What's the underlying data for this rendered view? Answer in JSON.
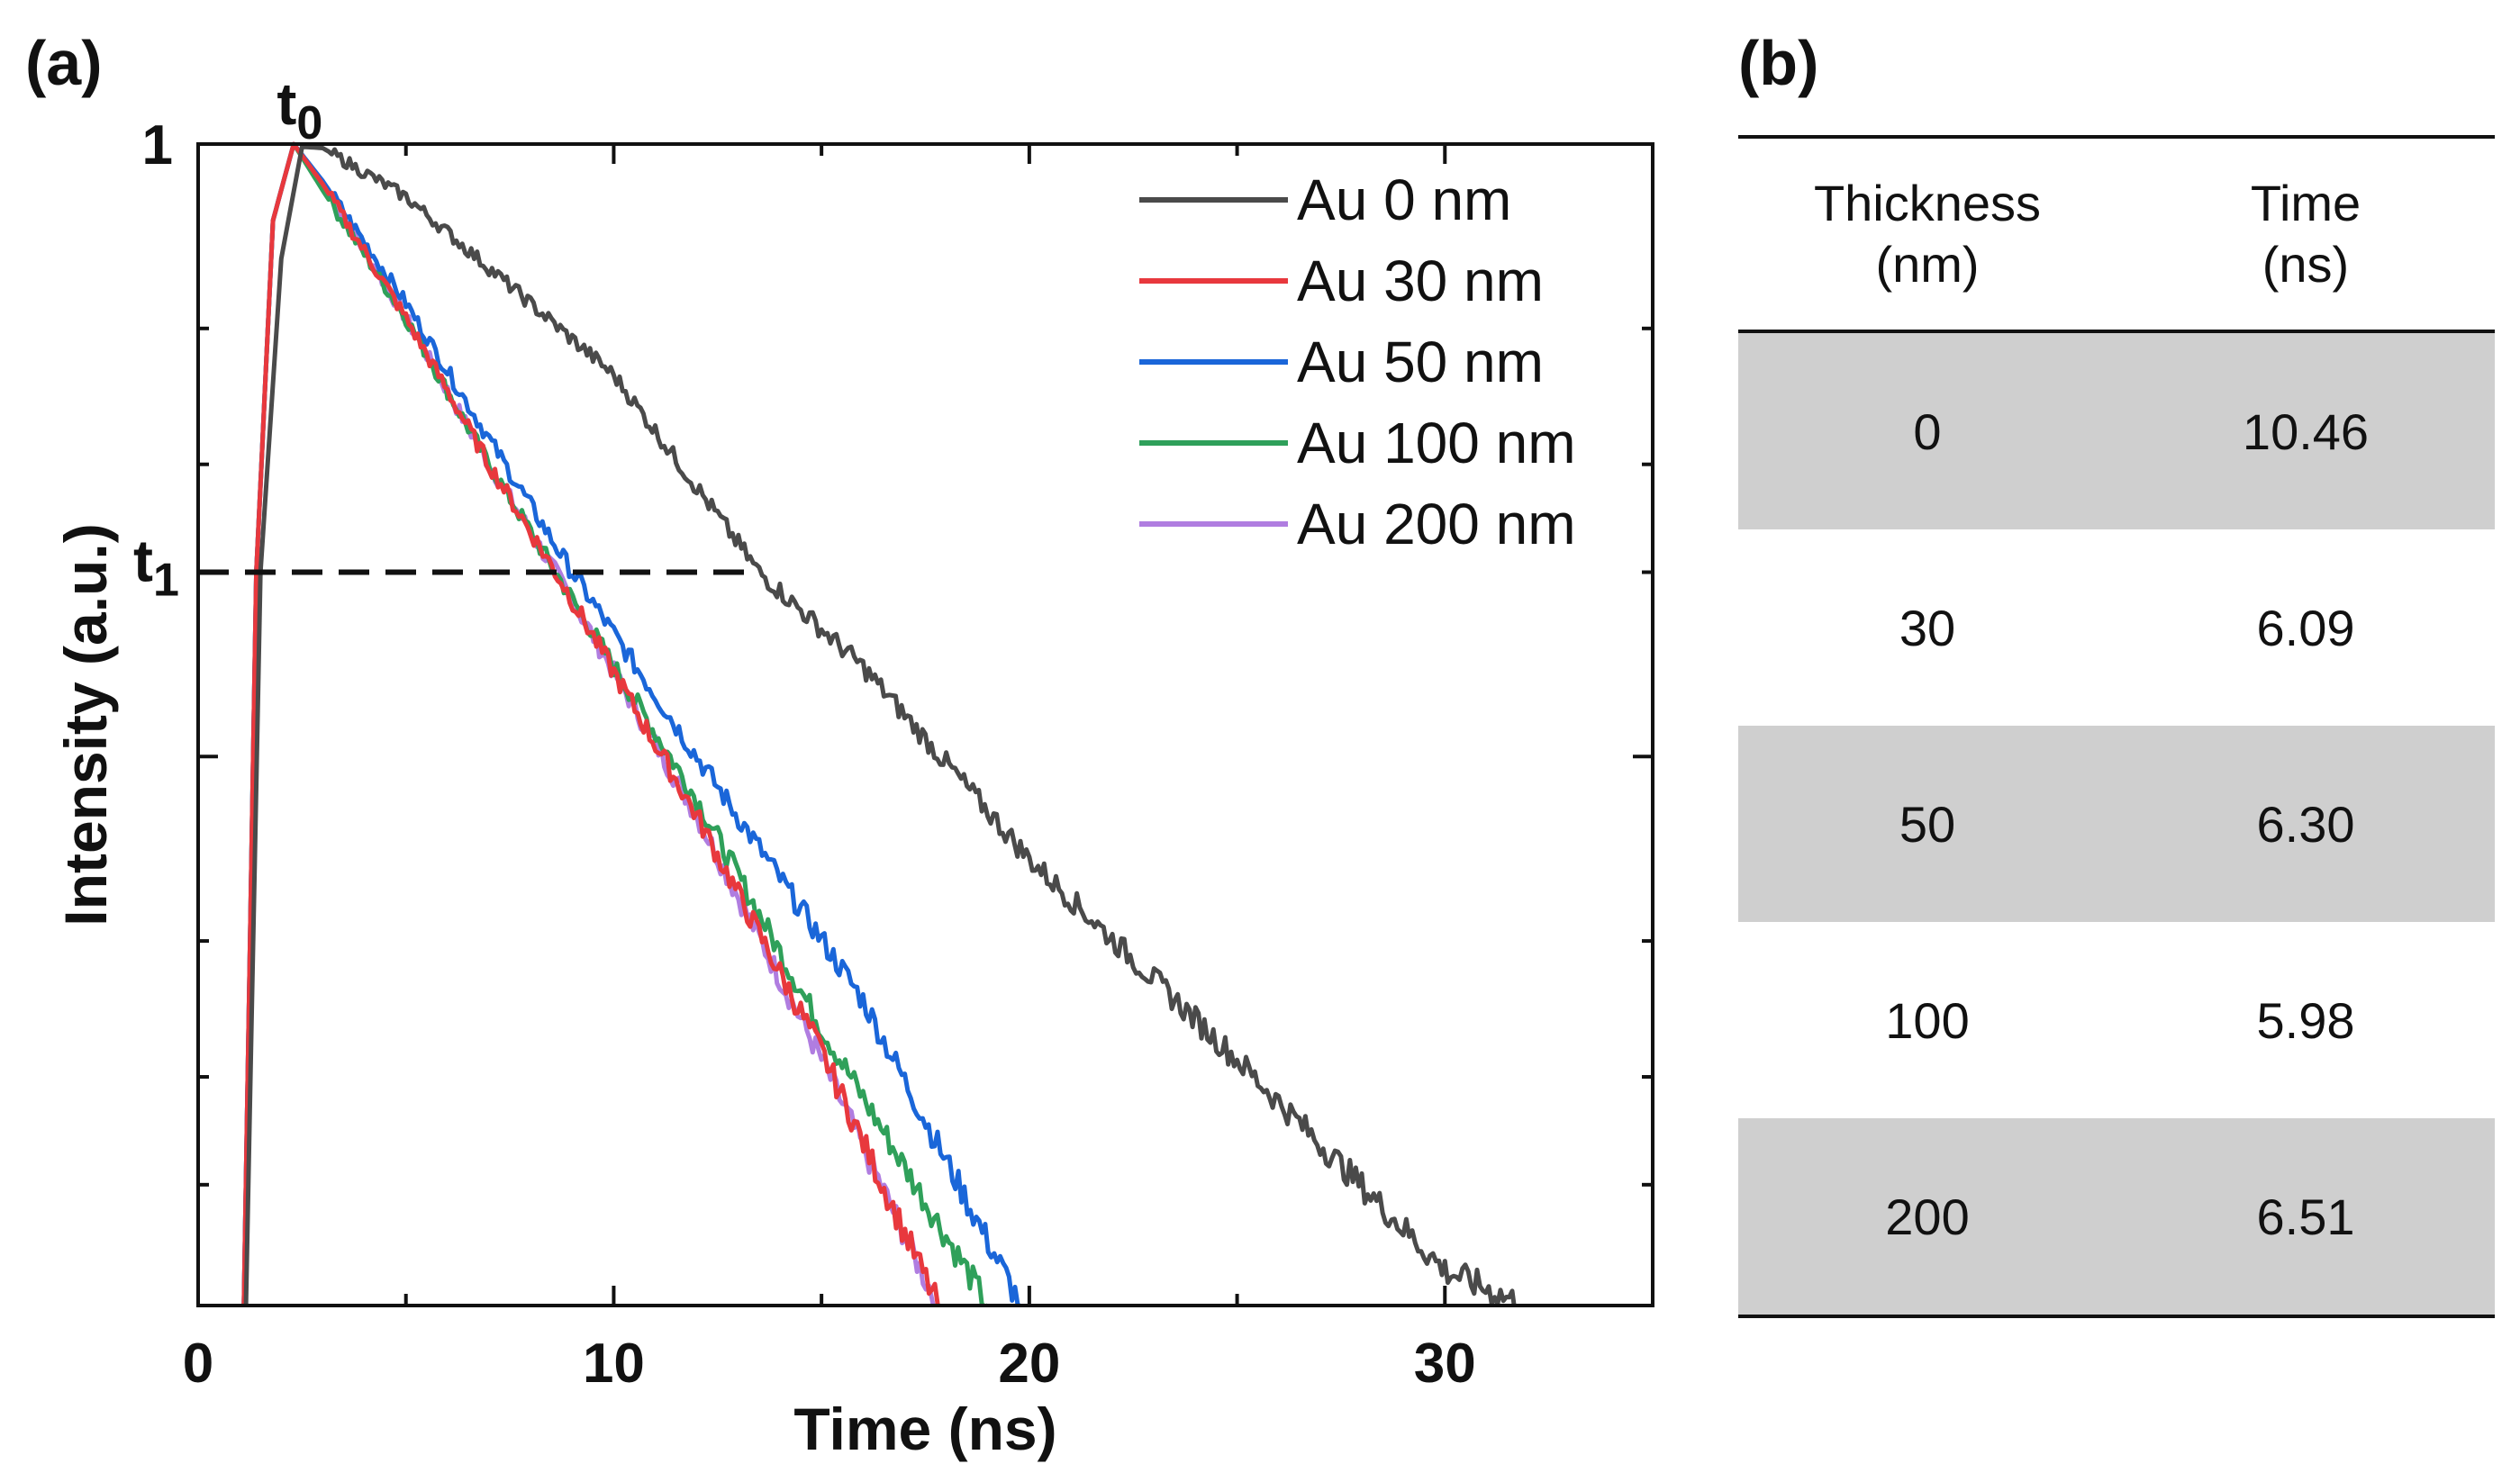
{
  "panel_a_label": "(a)",
  "panel_b_label": "(b)",
  "chart_data": {
    "type": "line",
    "title": "",
    "xlabel": "Time (ns)",
    "ylabel": "Intensity (a.u.)",
    "xlim": [
      0,
      35
    ],
    "ylim": [
      0.0127,
      1
    ],
    "yscale": "log",
    "x_ticks": [
      0,
      10,
      20,
      30
    ],
    "x_tick_labels": [
      "0",
      "10",
      "20",
      "30"
    ],
    "y_tick_labels": [
      {
        "value": 1,
        "label": "1"
      }
    ],
    "legend_position": "top-right",
    "annotations": {
      "t0": {
        "main": "t",
        "sub": "0",
        "x": 2.5,
        "y": 1
      },
      "t1": {
        "main": "t",
        "sub": "1",
        "x": 0,
        "y": 0.2
      },
      "dashed_line": {
        "x": [
          0,
          13.5
        ],
        "y": 0.2
      }
    },
    "series": [
      {
        "name": "Au 0 nm",
        "color": "#4a4a4a",
        "tau": 10.46,
        "x": [
          1.15,
          1.5,
          2.0,
          2.5,
          3.0,
          5.0,
          10.0,
          13.5,
          16.0,
          20.0,
          25.0,
          30.0,
          31.9
        ],
        "y": [
          0.0127,
          0.2,
          0.65,
          0.99,
          0.985,
          0.82,
          0.42,
          0.2,
          0.14,
          0.068,
          0.032,
          0.0145,
          0.0127
        ]
      },
      {
        "name": "Au 30 nm",
        "color": "#e8383d",
        "tau": 6.09,
        "x": [
          1.1,
          1.4,
          1.8,
          2.3,
          3.0,
          5.0,
          7.0,
          8.8,
          12.0,
          15.0,
          17.8
        ],
        "y": [
          0.0127,
          0.2,
          0.75,
          1.0,
          0.86,
          0.52,
          0.3,
          0.19,
          0.08,
          0.033,
          0.0127
        ]
      },
      {
        "name": "Au 50 nm",
        "color": "#1a66d9",
        "tau": 6.3,
        "x": [
          1.1,
          1.4,
          1.8,
          2.3,
          3.0,
          5.0,
          7.0,
          9.0,
          12.0,
          16.0,
          19.8
        ],
        "y": [
          0.0127,
          0.2,
          0.75,
          1.0,
          0.87,
          0.55,
          0.33,
          0.2,
          0.1,
          0.04,
          0.0127
        ]
      },
      {
        "name": "Au 100 nm",
        "color": "#2fa05a",
        "tau": 5.98,
        "x": [
          1.1,
          1.4,
          1.8,
          2.3,
          3.0,
          5.0,
          7.0,
          8.8,
          12.0,
          15.0,
          19.0
        ],
        "y": [
          0.0127,
          0.2,
          0.75,
          1.0,
          0.84,
          0.52,
          0.3,
          0.19,
          0.085,
          0.036,
          0.0127
        ]
      },
      {
        "name": "Au 200 nm",
        "color": "#b07de0",
        "tau": 6.51,
        "x": [
          1.1,
          1.4,
          1.8,
          2.3,
          3.0,
          5.0,
          7.0,
          8.8,
          12.0,
          15.0,
          17.8
        ],
        "y": [
          0.0127,
          0.2,
          0.75,
          1.0,
          0.86,
          0.52,
          0.3,
          0.19,
          0.08,
          0.032,
          0.0127
        ]
      }
    ]
  },
  "table": {
    "headers": [
      {
        "line1": "Thickness",
        "line2": "(nm)"
      },
      {
        "line1": "Time",
        "line2": "(ns)"
      }
    ],
    "rows": [
      {
        "thickness": "0",
        "time": "10.46"
      },
      {
        "thickness": "30",
        "time": "6.09"
      },
      {
        "thickness": "50",
        "time": "6.30"
      },
      {
        "thickness": "100",
        "time": "5.98"
      },
      {
        "thickness": "200",
        "time": "6.51"
      }
    ]
  }
}
